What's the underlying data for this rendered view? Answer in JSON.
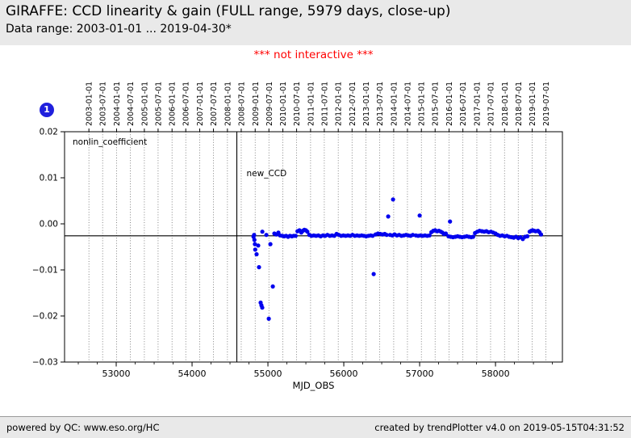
{
  "header": {
    "title": "GIRAFFE: CCD linearity & gain (FULL range, 5979 days, close-up)",
    "subtitle": "Data range: 2003-01-01 ... 2019-04-30*",
    "bg_color": "#e9e9e9"
  },
  "notice": {
    "text": "*** not interactive ***",
    "color": "#ff0000"
  },
  "badge": {
    "label": "1",
    "color": "#2020dd"
  },
  "footer": {
    "left": "powered by QC: www.eso.org/HC",
    "right": "created by trendPlotter v4.0 on 2019-05-15T04:31:52"
  },
  "chart_data": {
    "type": "scatter",
    "series_label": "nonlin_coefficient",
    "annotation": "new_CCD",
    "xlabel": "MJD_OBS",
    "xlim": [
      52319,
      58882
    ],
    "ylim": [
      -0.03,
      0.02
    ],
    "x_ticks": [
      53000,
      54000,
      55000,
      56000,
      57000,
      58000
    ],
    "x_minor_step": 250,
    "y_ticks": [
      0.02,
      0.01,
      0,
      -0.01,
      -0.02,
      -0.03
    ],
    "y_tick_labels": [
      "0.02",
      "0.01",
      "0.00",
      "−0.01",
      "−0.02",
      "−0.03"
    ],
    "top_date_ticks": [
      "2003-01-01",
      "2003-07-01",
      "2004-01-01",
      "2004-07-01",
      "2005-01-01",
      "2005-07-01",
      "2006-01-01",
      "2006-07-01",
      "2007-01-01",
      "2007-07-01",
      "2008-01-01",
      "2008-07-01",
      "2009-01-01",
      "2009-07-01",
      "2010-01-01",
      "2010-07-01",
      "2011-01-01",
      "2011-07-01",
      "2012-01-01",
      "2012-07-01",
      "2013-01-01",
      "2013-07-01",
      "2014-01-01",
      "2014-07-01",
      "2015-01-01",
      "2015-07-01",
      "2016-01-01",
      "2016-07-01",
      "2017-01-01",
      "2017-07-01",
      "2018-01-01",
      "2018-07-01",
      "2019-01-01",
      "2019-07-01"
    ],
    "grid": "vertical-dotted",
    "legend_position": "none",
    "hline_y": -0.0026,
    "vline_x_mjd": 54590,
    "point_color": "#0000ee",
    "points": [
      [
        54810,
        -0.0028
      ],
      [
        54818,
        -0.0024
      ],
      [
        54822,
        -0.0035
      ],
      [
        54828,
        -0.0044
      ],
      [
        54832,
        -0.0056
      ],
      [
        54851,
        -0.0066
      ],
      [
        54872,
        -0.0047
      ],
      [
        54883,
        -0.0094
      ],
      [
        54904,
        -0.0171
      ],
      [
        54914,
        -0.0177
      ],
      [
        54925,
        -0.0182
      ],
      [
        54926,
        -0.0017
      ],
      [
        54979,
        -0.0024
      ],
      [
        55011,
        -0.0206
      ],
      [
        55032,
        -0.0044
      ],
      [
        55064,
        -0.0136
      ],
      [
        55085,
        -0.0021
      ],
      [
        55110,
        -0.0023
      ],
      [
        55138,
        -0.0019
      ],
      [
        55160,
        -0.0025
      ],
      [
        55190,
        -0.0026
      ],
      [
        55215,
        -0.0027
      ],
      [
        55240,
        -0.0026
      ],
      [
        55265,
        -0.0028
      ],
      [
        55290,
        -0.0026
      ],
      [
        55315,
        -0.0027
      ],
      [
        55340,
        -0.0026
      ],
      [
        55365,
        -0.0026
      ],
      [
        55390,
        -0.0016
      ],
      [
        55415,
        -0.0014
      ],
      [
        55440,
        -0.0019
      ],
      [
        55460,
        -0.0015
      ],
      [
        55480,
        -0.0013
      ],
      [
        55500,
        -0.0014
      ],
      [
        55520,
        -0.0017
      ],
      [
        55545,
        -0.0024
      ],
      [
        55575,
        -0.0026
      ],
      [
        55605,
        -0.0025
      ],
      [
        55635,
        -0.0026
      ],
      [
        55665,
        -0.0025
      ],
      [
        55695,
        -0.0027
      ],
      [
        55725,
        -0.0025
      ],
      [
        55755,
        -0.0026
      ],
      [
        55785,
        -0.0024
      ],
      [
        55815,
        -0.0026
      ],
      [
        55845,
        -0.0025
      ],
      [
        55875,
        -0.0026
      ],
      [
        55905,
        -0.0022
      ],
      [
        55935,
        -0.0024
      ],
      [
        55965,
        -0.0026
      ],
      [
        55995,
        -0.0025
      ],
      [
        56025,
        -0.0026
      ],
      [
        56055,
        -0.0025
      ],
      [
        56085,
        -0.0026
      ],
      [
        56115,
        -0.0024
      ],
      [
        56145,
        -0.0026
      ],
      [
        56175,
        -0.0025
      ],
      [
        56205,
        -0.0026
      ],
      [
        56235,
        -0.0025
      ],
      [
        56265,
        -0.0026
      ],
      [
        56295,
        -0.0027
      ],
      [
        56325,
        -0.0026
      ],
      [
        56355,
        -0.0025
      ],
      [
        56380,
        -0.0026
      ],
      [
        56394,
        -0.0109
      ],
      [
        56420,
        -0.0023
      ],
      [
        56450,
        -0.0021
      ],
      [
        56480,
        -0.0022
      ],
      [
        56510,
        -0.0023
      ],
      [
        56540,
        -0.0022
      ],
      [
        56565,
        -0.0024
      ],
      [
        56585,
        0.0016
      ],
      [
        56649,
        0.0053
      ],
      [
        56610,
        -0.0024
      ],
      [
        56640,
        -0.0025
      ],
      [
        56670,
        -0.0023
      ],
      [
        56700,
        -0.0025
      ],
      [
        56730,
        -0.0024
      ],
      [
        56760,
        -0.0026
      ],
      [
        56790,
        -0.0025
      ],
      [
        56820,
        -0.0024
      ],
      [
        56850,
        -0.0025
      ],
      [
        56880,
        -0.0026
      ],
      [
        56910,
        -0.0024
      ],
      [
        56950,
        -0.0025
      ],
      [
        56980,
        -0.0026
      ],
      [
        57000,
        0.0018
      ],
      [
        57010,
        -0.0025
      ],
      [
        57040,
        -0.0026
      ],
      [
        57070,
        -0.0025
      ],
      [
        57100,
        -0.0026
      ],
      [
        57130,
        -0.0025
      ],
      [
        57155,
        -0.0018
      ],
      [
        57180,
        -0.0015
      ],
      [
        57205,
        -0.0014
      ],
      [
        57230,
        -0.0016
      ],
      [
        57255,
        -0.0015
      ],
      [
        57280,
        -0.0017
      ],
      [
        57300,
        -0.0019
      ],
      [
        57320,
        -0.0022
      ],
      [
        57345,
        -0.0021
      ],
      [
        57400,
        0.0005
      ],
      [
        57380,
        -0.0027
      ],
      [
        57410,
        -0.0028
      ],
      [
        57440,
        -0.0029
      ],
      [
        57470,
        -0.0028
      ],
      [
        57500,
        -0.0027
      ],
      [
        57530,
        -0.0028
      ],
      [
        57560,
        -0.0029
      ],
      [
        57590,
        -0.0028
      ],
      [
        57620,
        -0.0027
      ],
      [
        57650,
        -0.0028
      ],
      [
        57680,
        -0.0029
      ],
      [
        57705,
        -0.0028
      ],
      [
        57730,
        -0.002
      ],
      [
        57760,
        -0.0017
      ],
      [
        57790,
        -0.0015
      ],
      [
        57820,
        -0.0016
      ],
      [
        57850,
        -0.0017
      ],
      [
        57880,
        -0.0016
      ],
      [
        57910,
        -0.0018
      ],
      [
        57940,
        -0.0017
      ],
      [
        57970,
        -0.0019
      ],
      [
        58000,
        -0.0021
      ],
      [
        58030,
        -0.0024
      ],
      [
        58060,
        -0.0026
      ],
      [
        58090,
        -0.0025
      ],
      [
        58120,
        -0.0027
      ],
      [
        58150,
        -0.0026
      ],
      [
        58180,
        -0.0028
      ],
      [
        58210,
        -0.0029
      ],
      [
        58240,
        -0.003
      ],
      [
        58270,
        -0.0028
      ],
      [
        58300,
        -0.0031
      ],
      [
        58330,
        -0.0029
      ],
      [
        58360,
        -0.0033
      ],
      [
        58390,
        -0.0028
      ],
      [
        58420,
        -0.0027
      ],
      [
        58450,
        -0.0017
      ],
      [
        58470,
        -0.0015
      ],
      [
        58490,
        -0.0014
      ],
      [
        58510,
        -0.0015
      ],
      [
        58530,
        -0.0016
      ],
      [
        58560,
        -0.0015
      ],
      [
        58580,
        -0.0018
      ],
      [
        58600,
        -0.0023
      ]
    ]
  }
}
